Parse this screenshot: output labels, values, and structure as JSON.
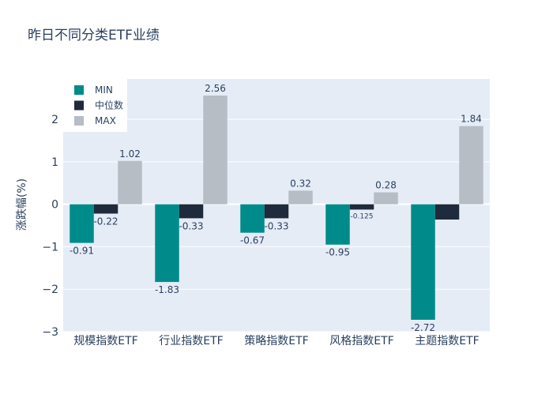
{
  "chart_data": {
    "type": "bar",
    "title": "昨日不同分类ETF业绩",
    "xlabel": "",
    "ylabel": "涨跌幅(%)",
    "ylim": [
      -3,
      2.95
    ],
    "yticks": [
      -3,
      -2,
      -1,
      0,
      1,
      2
    ],
    "ytick_labels": [
      "−3",
      "−2",
      "−1",
      "0",
      "1",
      "2"
    ],
    "grid": true,
    "legend": "top-left",
    "categories": [
      "规模指数ETF",
      "行业指数ETF",
      "策略指数ETF",
      "风格指数ETF",
      "主题指数ETF"
    ],
    "series": [
      {
        "name": "MIN",
        "color": "#008b8b",
        "values": [
          -0.91,
          -1.83,
          -0.67,
          -0.95,
          -2.72
        ],
        "labels": [
          "-0.91",
          "-1.83",
          "-0.67",
          "-0.95",
          "-2.72"
        ]
      },
      {
        "name": "中位数",
        "color": "#1f2a3d",
        "values": [
          -0.22,
          -0.33,
          -0.33,
          -0.125,
          -0.36
        ],
        "labels": [
          "-0.22",
          "-0.33",
          "-0.33",
          "-0.125",
          ""
        ]
      },
      {
        "name": "MAX",
        "color": "#b6bdc5",
        "values": [
          1.02,
          2.56,
          0.32,
          0.28,
          1.84
        ],
        "labels": [
          "1.02",
          "2.56",
          "0.32",
          "0.28",
          "1.84"
        ]
      }
    ],
    "colors": {
      "plot_bg": "#e5ecf6",
      "grid": "#ffffff",
      "text": "#2a3f5f"
    }
  }
}
